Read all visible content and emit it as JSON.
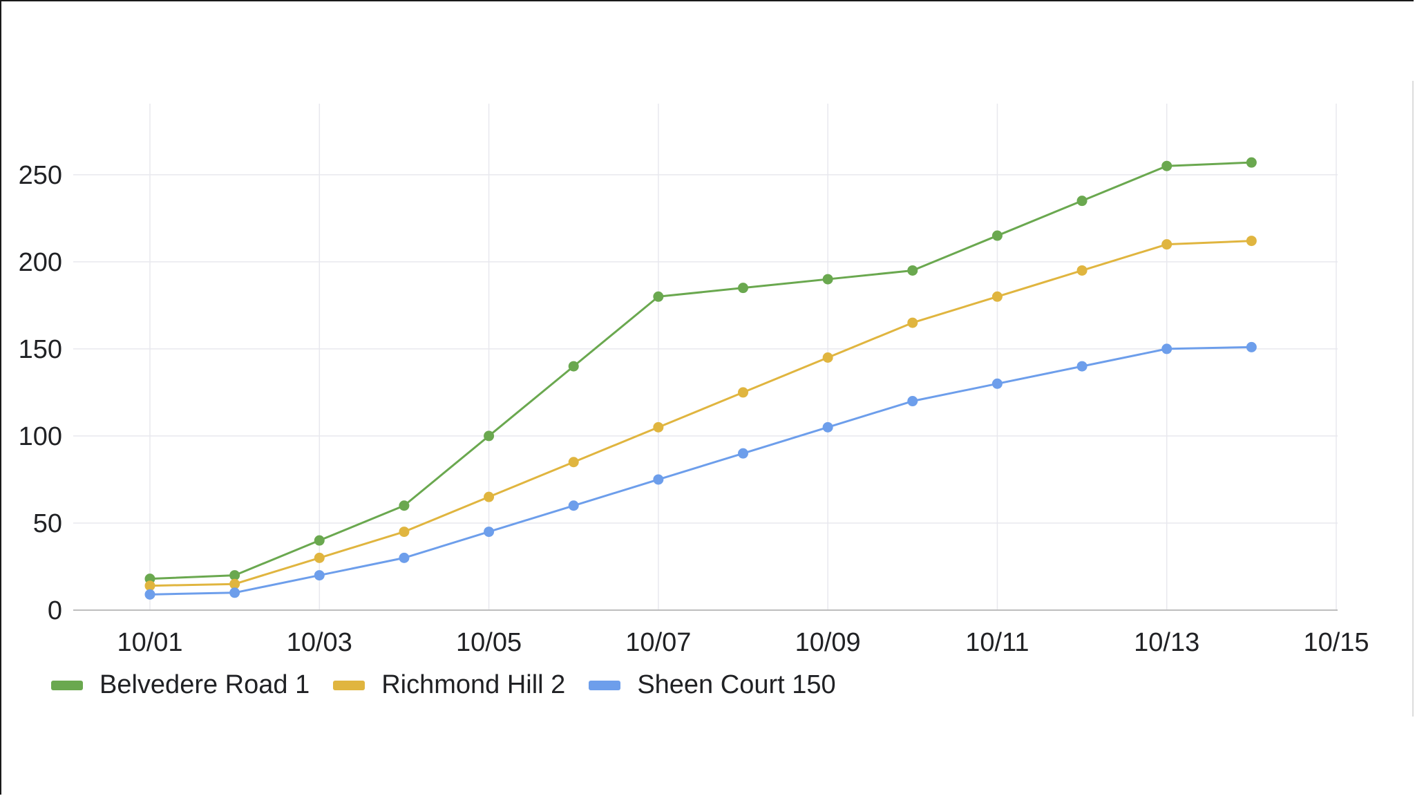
{
  "chart_data": {
    "type": "line",
    "title": "",
    "xlabel": "",
    "ylabel": "",
    "x_ticks": [
      "10/01",
      "10/03",
      "10/05",
      "10/07",
      "10/09",
      "10/11",
      "10/13",
      "10/15"
    ],
    "x_tick_values": [
      1,
      3,
      5,
      7,
      9,
      11,
      13,
      15
    ],
    "xlim": [
      1,
      15
    ],
    "y_ticks": [
      "0",
      "50",
      "100",
      "150",
      "200",
      "250"
    ],
    "y_tick_values": [
      0,
      50,
      100,
      150,
      200,
      250
    ],
    "ylim": [
      0,
      290
    ],
    "grid": true,
    "legend_position": "bottom-left",
    "x": [
      1,
      2,
      3,
      4,
      5,
      6,
      7,
      8,
      9,
      10,
      11,
      12,
      13,
      14
    ],
    "series": [
      {
        "name": "Belvedere Road 1",
        "color": "#6aa84f",
        "values": [
          18,
          20,
          40,
          60,
          100,
          140,
          180,
          185,
          190,
          195,
          215,
          235,
          255,
          257
        ]
      },
      {
        "name": "Richmond Hill 2",
        "color": "#e0b53f",
        "values": [
          14,
          15,
          30,
          45,
          65,
          85,
          105,
          125,
          145,
          165,
          180,
          195,
          210,
          212
        ]
      },
      {
        "name": "Sheen Court 150",
        "color": "#6d9eeb",
        "values": [
          9,
          10,
          20,
          30,
          45,
          60,
          75,
          90,
          105,
          120,
          130,
          140,
          150,
          151
        ]
      }
    ]
  }
}
